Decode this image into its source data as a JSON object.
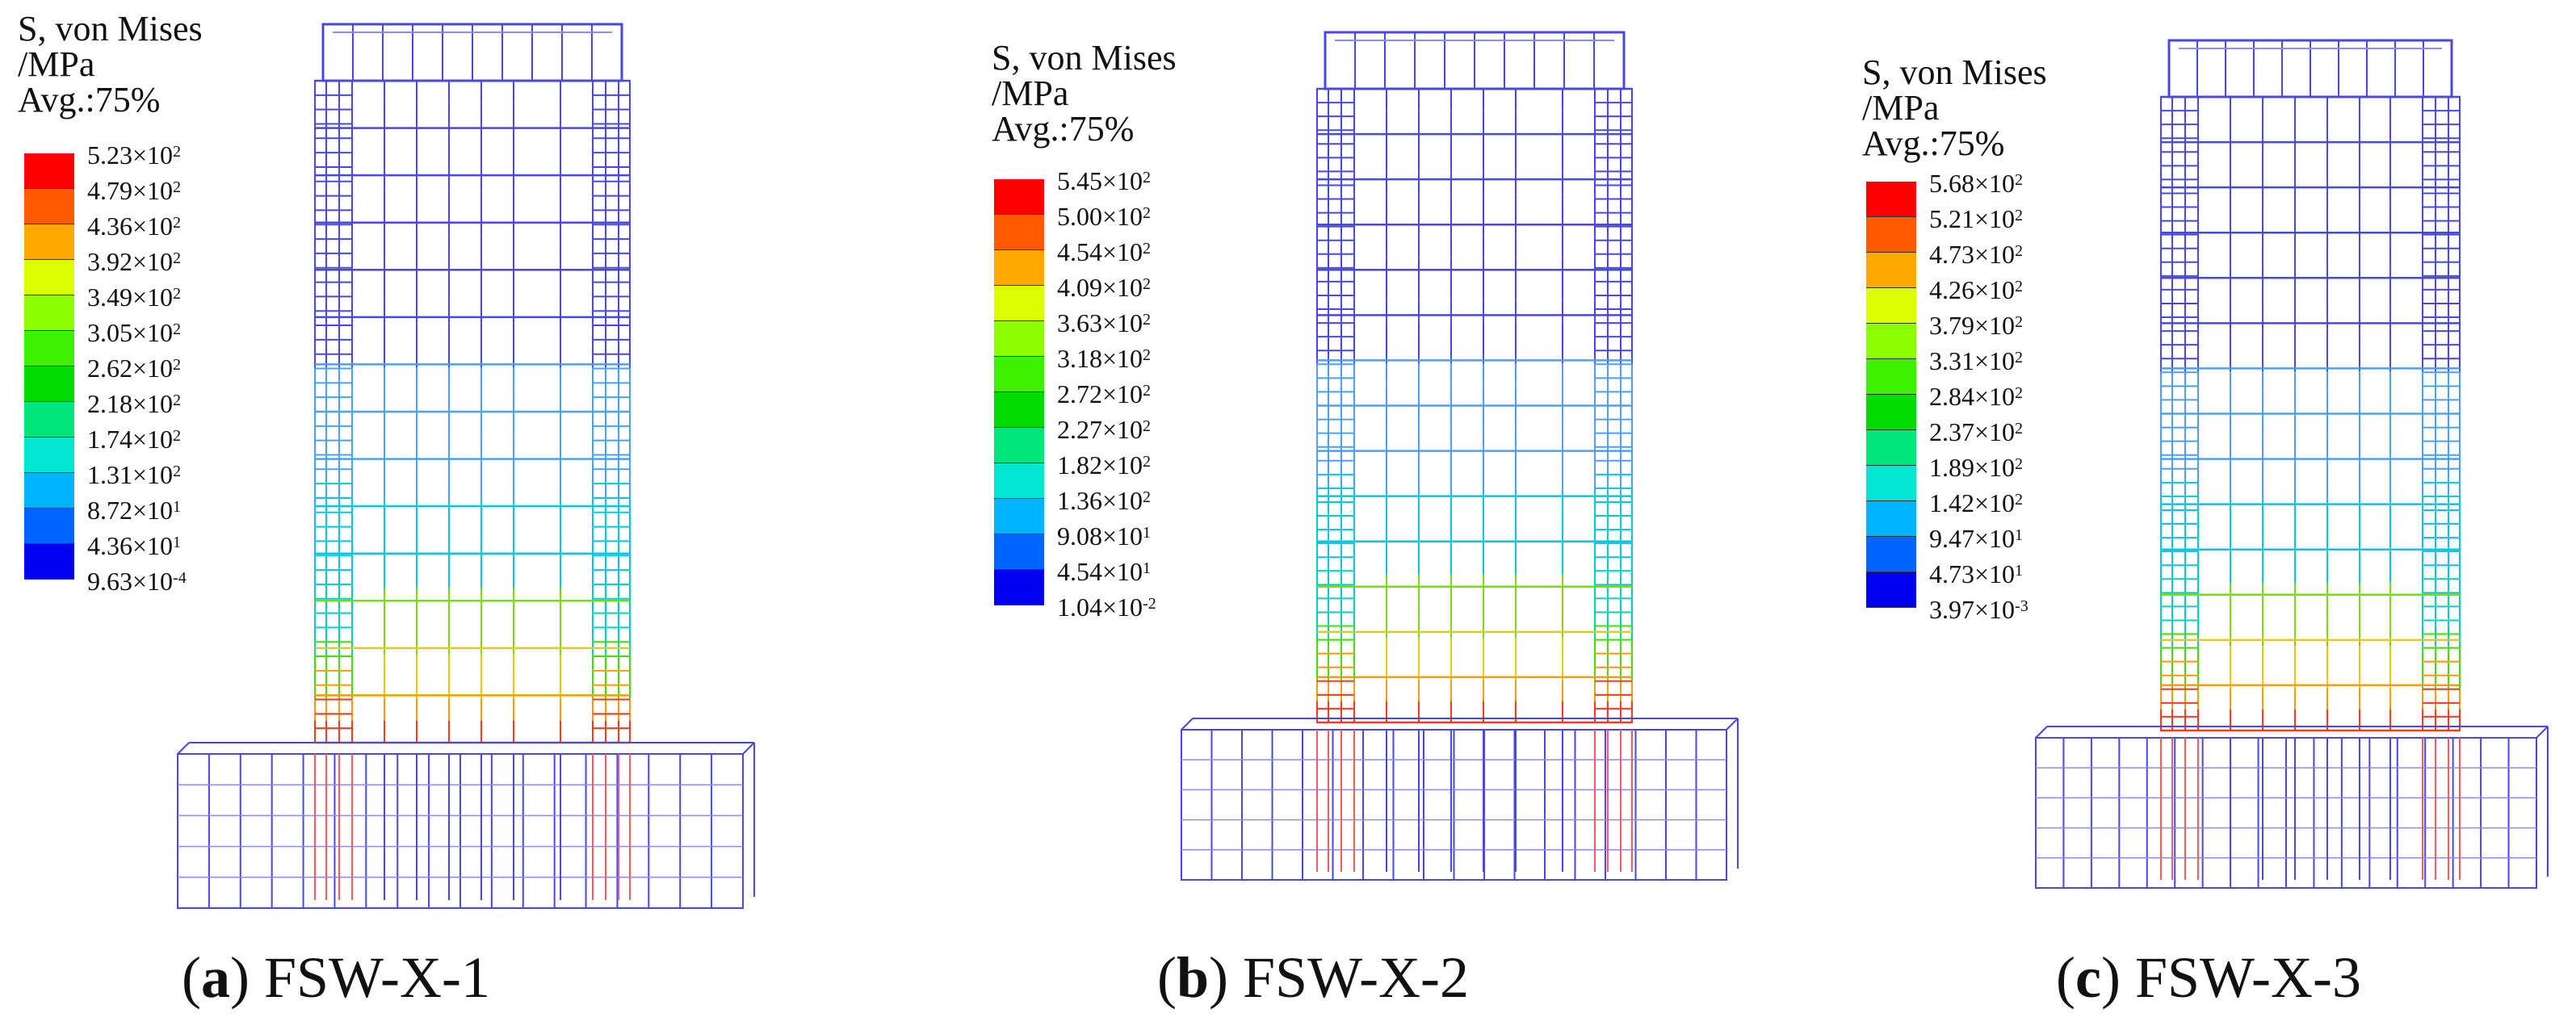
{
  "legend_colors": [
    "#ff0000",
    "#ff5a00",
    "#ffa800",
    "#dcff00",
    "#8cff00",
    "#3cf000",
    "#00dc00",
    "#00e67a",
    "#00e6d2",
    "#00b4ff",
    "#0064ff",
    "#0000f0"
  ],
  "panels": [
    {
      "letter": "a",
      "name": "FSW-X-1",
      "legend": {
        "title_line1": "S, von Mises",
        "title_line2": "/MPa",
        "title_line3": "Avg.:75%",
        "ticks": [
          {
            "m": "5.23",
            "e": "2"
          },
          {
            "m": "4.79",
            "e": "2"
          },
          {
            "m": "4.36",
            "e": "2"
          },
          {
            "m": "3.92",
            "e": "2"
          },
          {
            "m": "3.49",
            "e": "2"
          },
          {
            "m": "3.05",
            "e": "2"
          },
          {
            "m": "2.62",
            "e": "2"
          },
          {
            "m": "2.18",
            "e": "2"
          },
          {
            "m": "1.74",
            "e": "2"
          },
          {
            "m": "1.31",
            "e": "2"
          },
          {
            "m": "8.72",
            "e": "1"
          },
          {
            "m": "4.36",
            "e": "1"
          },
          {
            "m": "9.63",
            "e": "-4"
          }
        ]
      }
    },
    {
      "letter": "b",
      "name": "FSW-X-2",
      "legend": {
        "title_line1": "S, von Mises",
        "title_line2": "/MPa",
        "title_line3": "Avg.:75%",
        "ticks": [
          {
            "m": "5.45",
            "e": "2"
          },
          {
            "m": "5.00",
            "e": "2"
          },
          {
            "m": "4.54",
            "e": "2"
          },
          {
            "m": "4.09",
            "e": "2"
          },
          {
            "m": "3.63",
            "e": "2"
          },
          {
            "m": "3.18",
            "e": "2"
          },
          {
            "m": "2.72",
            "e": "2"
          },
          {
            "m": "2.27",
            "e": "2"
          },
          {
            "m": "1.82",
            "e": "2"
          },
          {
            "m": "1.36",
            "e": "2"
          },
          {
            "m": "9.08",
            "e": "1"
          },
          {
            "m": "4.54",
            "e": "1"
          },
          {
            "m": "1.04",
            "e": "-2"
          }
        ]
      }
    },
    {
      "letter": "c",
      "name": "FSW-X-3",
      "legend": {
        "title_line1": "S, von Mises",
        "title_line2": "/MPa",
        "title_line3": "Avg.:75%",
        "ticks": [
          {
            "m": "5.68",
            "e": "2"
          },
          {
            "m": "5.21",
            "e": "2"
          },
          {
            "m": "4.73",
            "e": "2"
          },
          {
            "m": "4.26",
            "e": "2"
          },
          {
            "m": "3.79",
            "e": "2"
          },
          {
            "m": "3.31",
            "e": "2"
          },
          {
            "m": "2.84",
            "e": "2"
          },
          {
            "m": "2.37",
            "e": "2"
          },
          {
            "m": "1.89",
            "e": "2"
          },
          {
            "m": "1.42",
            "e": "2"
          },
          {
            "m": "9.47",
            "e": "1"
          },
          {
            "m": "4.73",
            "e": "1"
          },
          {
            "m": "3.97",
            "e": "-3"
          }
        ]
      }
    }
  ]
}
